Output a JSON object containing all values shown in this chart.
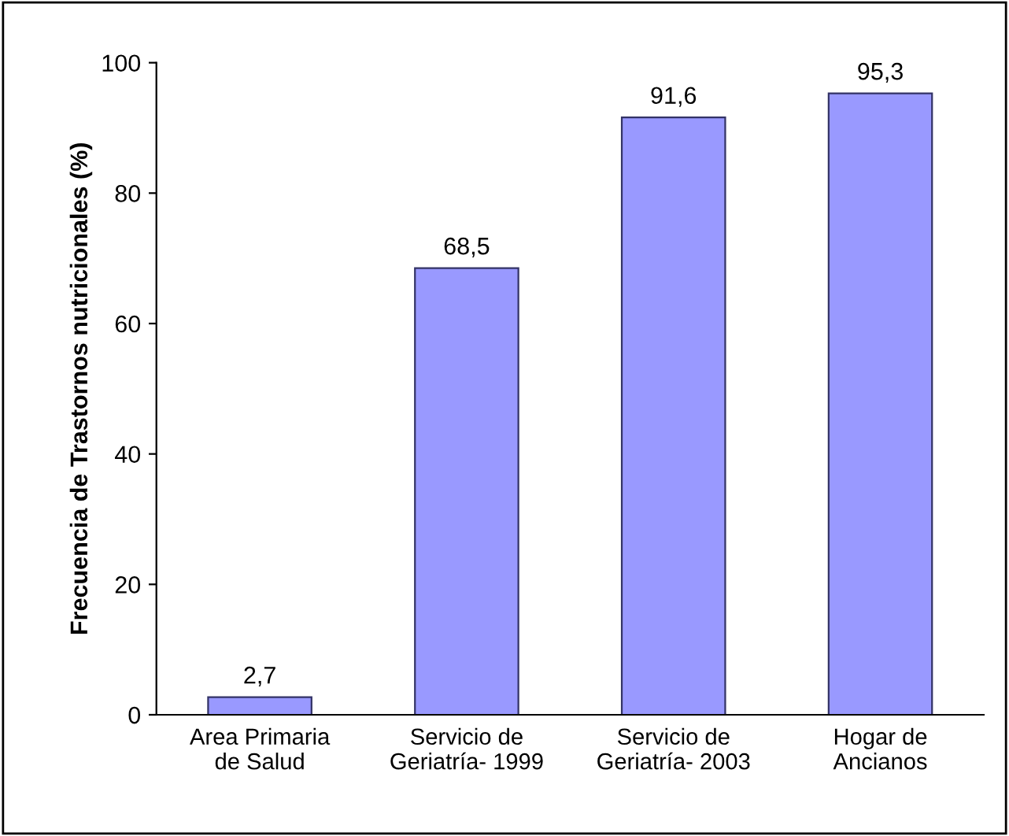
{
  "chart_data": {
    "type": "bar",
    "ylabel": "Frecuencia de Trastornos nutricionales (%)",
    "categories": [
      "Area Primaria\nde Salud",
      "Servicio de\nGeriatría- 1999",
      "Servicio de\nGeriatría- 2003",
      "Hogar de\nAncianos"
    ],
    "values": [
      2.7,
      68.5,
      91.6,
      95.3
    ],
    "value_labels": [
      "2,7",
      "68,5",
      "91,6",
      "95,3"
    ],
    "color": "#9999ff",
    "ylim": [
      0,
      100
    ],
    "yticks": [
      0,
      20,
      40,
      60,
      80,
      100
    ],
    "grid": false,
    "legend": false
  }
}
